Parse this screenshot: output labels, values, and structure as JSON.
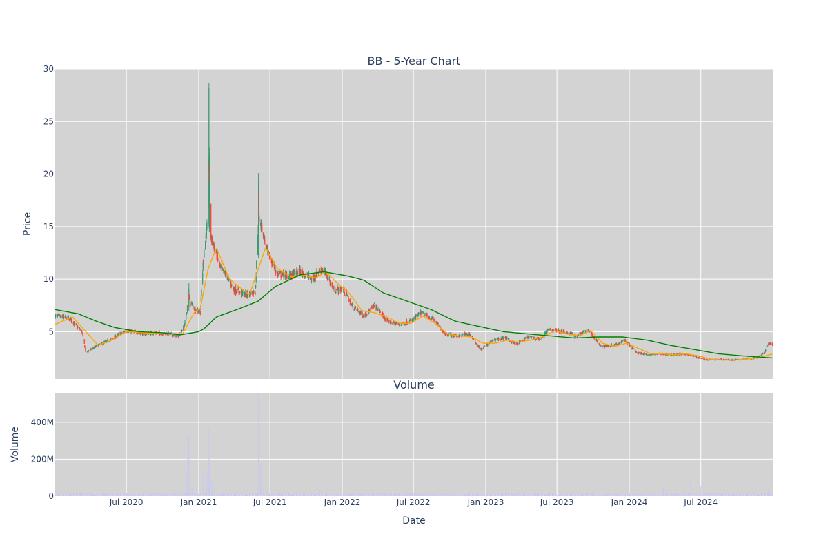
{
  "colors": {
    "plot_bg": "#d3d3d3",
    "grid": "#ffffff",
    "text": "#2a3f5f",
    "increasing": "#3d9970",
    "decreasing": "#ff4136",
    "ma_short": "#ffa500",
    "ma_long": "#008000",
    "volume": "#c8c8f0"
  },
  "chart_data": [
    {
      "type": "candlestick",
      "title": "BB - 5-Year Chart",
      "xlabel": "",
      "ylabel": "Price",
      "yticks": [
        5,
        10,
        15,
        20,
        25,
        30
      ],
      "ylim": [
        0.5,
        30
      ],
      "xlim": [
        "2020-01-02",
        "2024-12-31"
      ],
      "grid": true,
      "anchors": [
        [
          "2020-01-02",
          6.5
        ],
        [
          "2020-02-10",
          6.2
        ],
        [
          "2020-03-10",
          5.0
        ],
        [
          "2020-03-20",
          3.0
        ],
        [
          "2020-04-15",
          3.6
        ],
        [
          "2020-05-20",
          4.2
        ],
        [
          "2020-06-15",
          4.8
        ],
        [
          "2020-07-01",
          5.1
        ],
        [
          "2020-08-15",
          4.8
        ],
        [
          "2020-09-15",
          4.9
        ],
        [
          "2020-10-15",
          4.8
        ],
        [
          "2020-11-10",
          4.6
        ],
        [
          "2020-11-25",
          5.5
        ],
        [
          "2020-12-07",
          8.0
        ],
        [
          "2020-12-22",
          7.2
        ],
        [
          "2021-01-05",
          6.9
        ],
        [
          "2021-01-13",
          12.0
        ],
        [
          "2021-01-22",
          15.0
        ],
        [
          "2021-01-27",
          22.0
        ],
        [
          "2021-02-01",
          14.0
        ],
        [
          "2021-02-10",
          13.0
        ],
        [
          "2021-02-25",
          11.0
        ],
        [
          "2021-03-10",
          10.5
        ],
        [
          "2021-04-01",
          9.0
        ],
        [
          "2021-05-01",
          8.5
        ],
        [
          "2021-05-25",
          8.8
        ],
        [
          "2021-06-02",
          16.0
        ],
        [
          "2021-06-10",
          15.0
        ],
        [
          "2021-06-25",
          12.5
        ],
        [
          "2021-07-20",
          10.5
        ],
        [
          "2021-08-20",
          10.3
        ],
        [
          "2021-09-15",
          10.8
        ],
        [
          "2021-10-15",
          10.0
        ],
        [
          "2021-11-10",
          11.0
        ],
        [
          "2021-11-25",
          10.2
        ],
        [
          "2021-12-10",
          9.0
        ],
        [
          "2022-01-05",
          9.0
        ],
        [
          "2022-01-25",
          7.5
        ],
        [
          "2022-02-25",
          6.5
        ],
        [
          "2022-03-25",
          7.5
        ],
        [
          "2022-04-25",
          6.0
        ],
        [
          "2022-05-25",
          5.7
        ],
        [
          "2022-06-25",
          6.0
        ],
        [
          "2022-07-20",
          6.8
        ],
        [
          "2022-08-20",
          6.2
        ],
        [
          "2022-09-20",
          4.8
        ],
        [
          "2022-10-20",
          4.6
        ],
        [
          "2022-11-20",
          4.8
        ],
        [
          "2022-12-20",
          3.3
        ],
        [
          "2023-01-20",
          4.2
        ],
        [
          "2023-02-20",
          4.4
        ],
        [
          "2023-03-20",
          3.8
        ],
        [
          "2023-04-20",
          4.5
        ],
        [
          "2023-05-20",
          4.3
        ],
        [
          "2023-06-10",
          5.2
        ],
        [
          "2023-07-20",
          5.0
        ],
        [
          "2023-08-20",
          4.6
        ],
        [
          "2023-09-20",
          5.2
        ],
        [
          "2023-10-20",
          3.6
        ],
        [
          "2023-11-20",
          3.7
        ],
        [
          "2023-12-20",
          4.2
        ],
        [
          "2024-01-20",
          3.0
        ],
        [
          "2024-02-20",
          2.8
        ],
        [
          "2024-03-20",
          2.9
        ],
        [
          "2024-04-20",
          2.8
        ],
        [
          "2024-05-20",
          2.9
        ],
        [
          "2024-06-20",
          2.6
        ],
        [
          "2024-07-20",
          2.3
        ],
        [
          "2024-08-20",
          2.4
        ],
        [
          "2024-09-20",
          2.3
        ],
        [
          "2024-10-20",
          2.4
        ],
        [
          "2024-11-20",
          2.5
        ],
        [
          "2024-12-10",
          3.0
        ],
        [
          "2024-12-20",
          3.9
        ],
        [
          "2024-12-31",
          3.8
        ]
      ],
      "spikes": [
        {
          "date": "2021-01-27",
          "high": 28.7,
          "low": 15.0
        },
        {
          "date": "2021-01-28",
          "high": 22.5,
          "low": 14.5
        },
        {
          "date": "2021-06-02",
          "high": 20.1,
          "low": 12.0
        },
        {
          "date": "2020-12-07",
          "high": 9.6,
          "low": 7.0
        }
      ],
      "series": [
        {
          "name": "",
          "kind": "ma",
          "color_key": "ma_short",
          "anchors": [
            [
              "2020-01-02",
              5.7
            ],
            [
              "2020-02-15",
              6.4
            ],
            [
              "2020-03-20",
              5.0
            ],
            [
              "2020-04-20",
              3.7
            ],
            [
              "2020-05-25",
              4.2
            ],
            [
              "2020-07-01",
              5.0
            ],
            [
              "2020-08-15",
              4.9
            ],
            [
              "2020-10-15",
              4.8
            ],
            [
              "2020-11-20",
              4.7
            ],
            [
              "2020-12-20",
              6.8
            ],
            [
              "2021-01-05",
              7.2
            ],
            [
              "2021-01-25",
              11.0
            ],
            [
              "2021-02-15",
              13.0
            ],
            [
              "2021-03-20",
              10.0
            ],
            [
              "2021-05-10",
              8.5
            ],
            [
              "2021-06-20",
              13.0
            ],
            [
              "2021-07-20",
              11.0
            ],
            [
              "2021-08-25",
              10.2
            ],
            [
              "2021-09-25",
              10.4
            ],
            [
              "2021-10-25",
              10.1
            ],
            [
              "2021-11-20",
              10.7
            ],
            [
              "2021-12-20",
              9.6
            ],
            [
              "2022-01-20",
              8.6
            ],
            [
              "2022-02-20",
              7.0
            ],
            [
              "2022-03-25",
              6.8
            ],
            [
              "2022-04-25",
              6.4
            ],
            [
              "2022-05-25",
              5.8
            ],
            [
              "2022-06-25",
              5.8
            ],
            [
              "2022-07-25",
              6.5
            ],
            [
              "2022-08-25",
              5.8
            ],
            [
              "2022-09-25",
              4.8
            ],
            [
              "2022-10-25",
              4.6
            ],
            [
              "2022-11-25",
              4.5
            ],
            [
              "2022-12-25",
              3.9
            ],
            [
              "2023-01-25",
              3.9
            ],
            [
              "2023-02-25",
              4.2
            ],
            [
              "2023-03-25",
              4.0
            ],
            [
              "2023-04-25",
              4.2
            ],
            [
              "2023-05-25",
              4.5
            ],
            [
              "2023-06-25",
              5.1
            ],
            [
              "2023-07-25",
              4.8
            ],
            [
              "2023-08-25",
              4.6
            ],
            [
              "2023-09-25",
              5.1
            ],
            [
              "2023-10-25",
              3.9
            ],
            [
              "2023-11-25",
              3.6
            ],
            [
              "2023-12-25",
              3.9
            ],
            [
              "2024-01-25",
              3.4
            ],
            [
              "2024-02-25",
              2.9
            ],
            [
              "2024-03-25",
              2.9
            ],
            [
              "2024-04-25",
              2.8
            ],
            [
              "2024-05-25",
              2.9
            ],
            [
              "2024-06-25",
              2.7
            ],
            [
              "2024-07-25",
              2.4
            ],
            [
              "2024-08-25",
              2.3
            ],
            [
              "2024-09-25",
              2.3
            ],
            [
              "2024-10-25",
              2.4
            ],
            [
              "2024-11-25",
              2.5
            ],
            [
              "2024-12-31",
              2.9
            ]
          ]
        },
        {
          "name": "",
          "kind": "ma",
          "color_key": "ma_long",
          "anchors": [
            [
              "2020-01-02",
              7.1
            ],
            [
              "2020-03-01",
              6.7
            ],
            [
              "2020-04-15",
              6.0
            ],
            [
              "2020-06-01",
              5.4
            ],
            [
              "2020-08-01",
              5.0
            ],
            [
              "2020-10-01",
              4.9
            ],
            [
              "2020-11-15",
              4.7
            ],
            [
              "2021-01-01",
              5.0
            ],
            [
              "2021-01-15",
              5.3
            ],
            [
              "2021-02-15",
              6.4
            ],
            [
              "2021-04-15",
              7.2
            ],
            [
              "2021-06-01",
              7.9
            ],
            [
              "2021-07-15",
              9.3
            ],
            [
              "2021-09-15",
              10.4
            ],
            [
              "2021-11-15",
              10.7
            ],
            [
              "2022-01-15",
              10.3
            ],
            [
              "2022-02-25",
              9.9
            ],
            [
              "2022-04-15",
              8.7
            ],
            [
              "2022-06-15",
              7.9
            ],
            [
              "2022-08-15",
              7.1
            ],
            [
              "2022-10-15",
              6.0
            ],
            [
              "2022-12-15",
              5.5
            ],
            [
              "2023-02-15",
              5.0
            ],
            [
              "2023-04-15",
              4.8
            ],
            [
              "2023-06-15",
              4.6
            ],
            [
              "2023-08-15",
              4.4
            ],
            [
              "2023-10-15",
              4.5
            ],
            [
              "2023-12-15",
              4.5
            ],
            [
              "2024-02-15",
              4.2
            ],
            [
              "2024-04-15",
              3.7
            ],
            [
              "2024-06-15",
              3.3
            ],
            [
              "2024-08-15",
              2.9
            ],
            [
              "2024-10-15",
              2.7
            ],
            [
              "2024-12-31",
              2.5
            ]
          ]
        }
      ]
    },
    {
      "type": "bar",
      "title": "Volume",
      "xlabel": "Date",
      "ylabel": "Volume",
      "xticks": [
        "Jul 2020",
        "Jan 2021",
        "Jul 2021",
        "Jan 2022",
        "Jul 2022",
        "Jan 2023",
        "Jul 2023",
        "Jan 2024",
        "Jul 2024"
      ],
      "xtick_dates": [
        "2020-07-01",
        "2021-01-01",
        "2021-07-01",
        "2022-01-01",
        "2022-07-01",
        "2023-01-01",
        "2023-07-01",
        "2024-01-01",
        "2024-07-01"
      ],
      "yticks": [
        "0",
        "200M",
        "400M"
      ],
      "ytick_values": [
        0,
        200,
        400
      ],
      "ylim": [
        0,
        560
      ],
      "unit": "M",
      "base": 10,
      "events": [
        {
          "date": "2020-03-20",
          "value": 25
        },
        {
          "date": "2020-12-01",
          "value": 120
        },
        {
          "date": "2020-12-04",
          "value": 320
        },
        {
          "date": "2020-12-07",
          "value": 330
        },
        {
          "date": "2020-12-10",
          "value": 150
        },
        {
          "date": "2020-12-15",
          "value": 40
        },
        {
          "date": "2021-01-13",
          "value": 150
        },
        {
          "date": "2021-01-22",
          "value": 120
        },
        {
          "date": "2021-01-27",
          "value": 370
        },
        {
          "date": "2021-01-28",
          "value": 180
        },
        {
          "date": "2021-02-03",
          "value": 90
        },
        {
          "date": "2021-02-10",
          "value": 60
        },
        {
          "date": "2021-02-20",
          "value": 40
        },
        {
          "date": "2021-03-05",
          "value": 30
        },
        {
          "date": "2021-06-02",
          "value": 560
        },
        {
          "date": "2021-06-03",
          "value": 190
        },
        {
          "date": "2021-06-07",
          "value": 170
        },
        {
          "date": "2021-06-10",
          "value": 90
        },
        {
          "date": "2021-06-15",
          "value": 50
        },
        {
          "date": "2021-06-25",
          "value": 30
        },
        {
          "date": "2021-11-05",
          "value": 35
        },
        {
          "date": "2024-02-10",
          "value": 35
        },
        {
          "date": "2024-03-28",
          "value": 45
        },
        {
          "date": "2024-06-05",
          "value": 90
        },
        {
          "date": "2024-07-01",
          "value": 55
        },
        {
          "date": "2024-12-20",
          "value": 40
        }
      ]
    }
  ]
}
